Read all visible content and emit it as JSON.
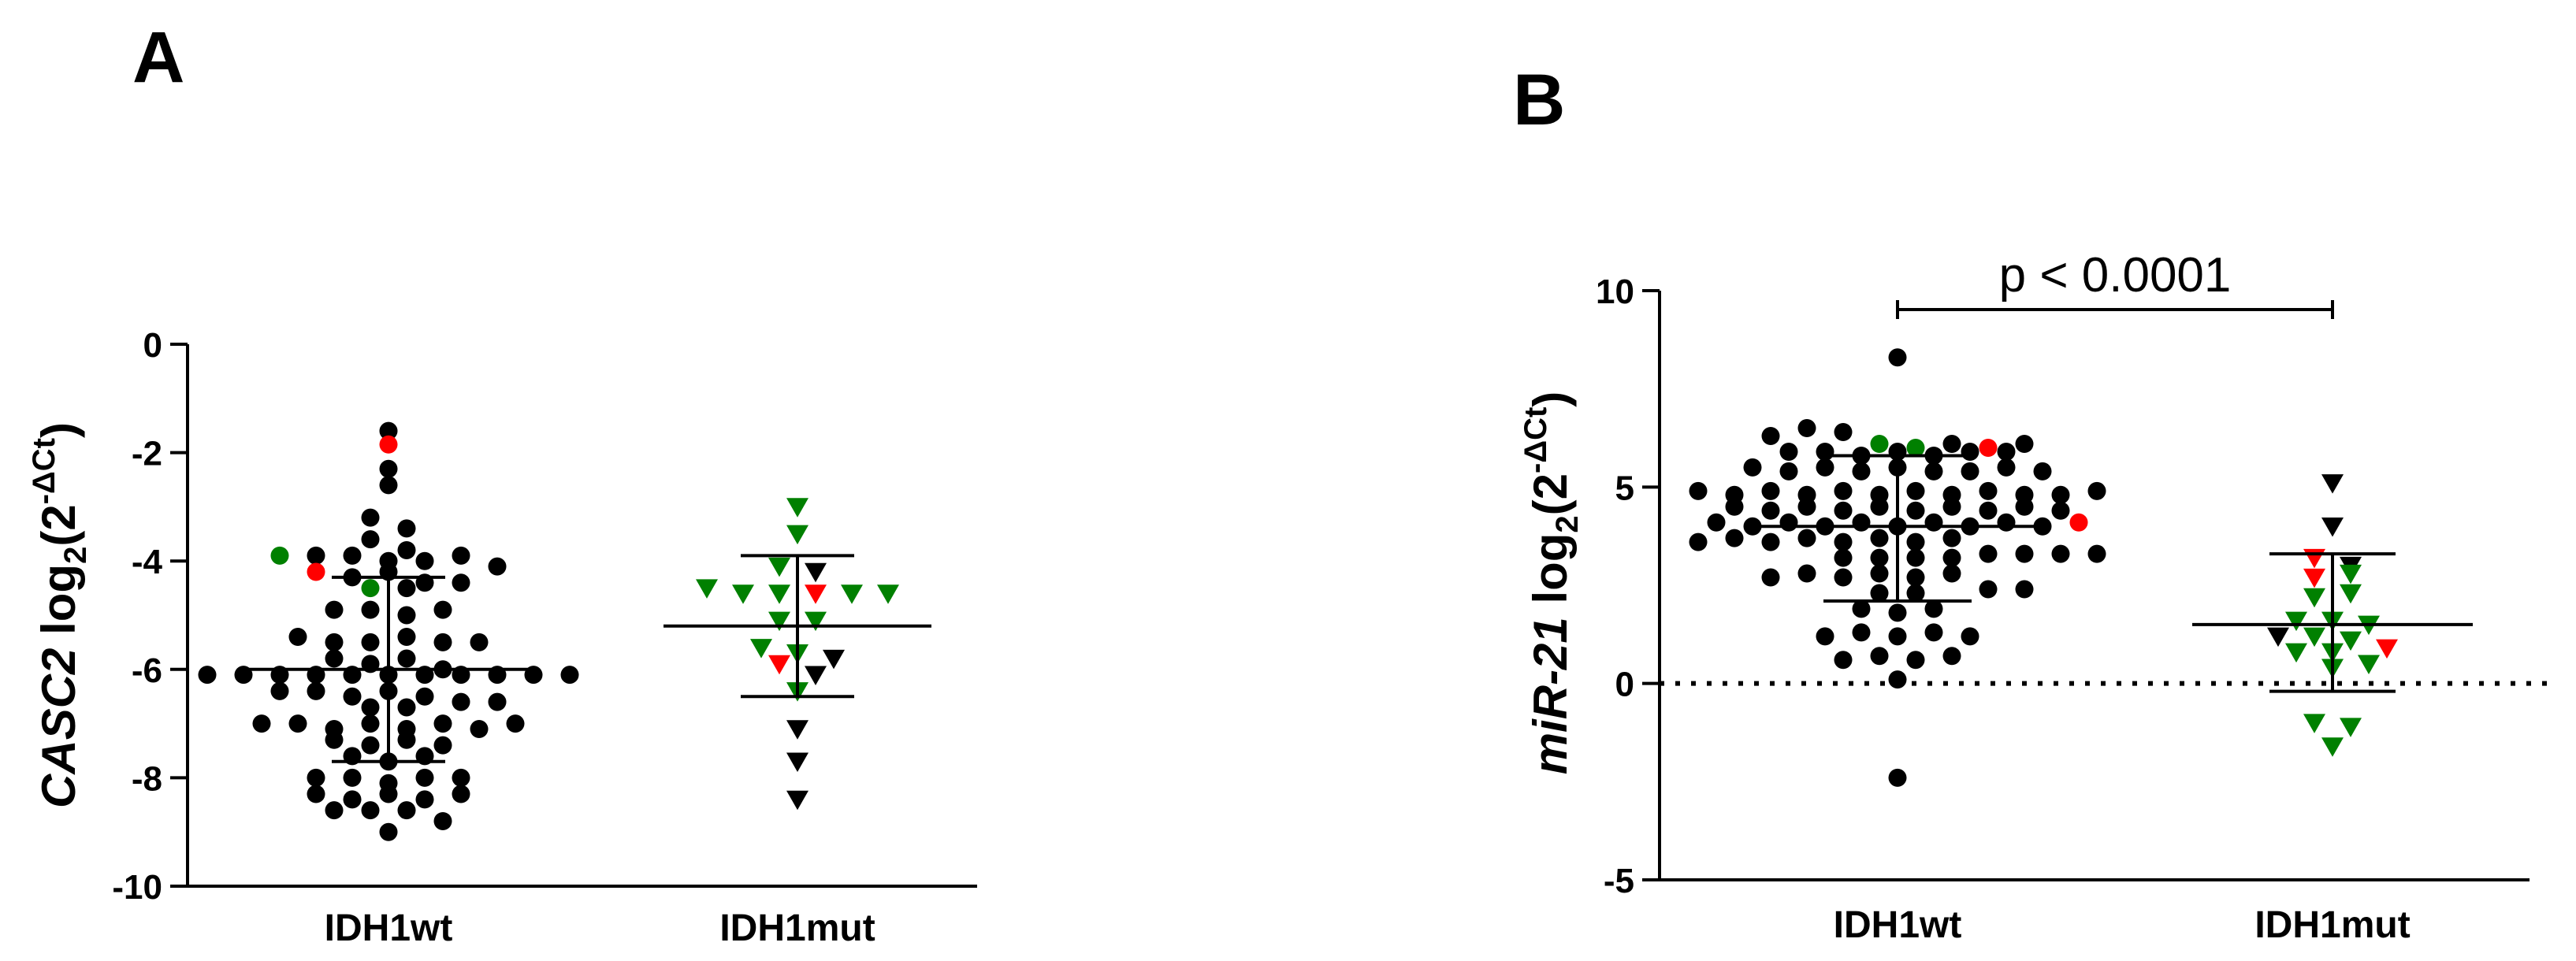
{
  "panels": [
    {
      "letter": "A",
      "ylabel": {
        "gene": "CASC2",
        "log": " log",
        "sub": "2",
        "open": "(2",
        "sup": "-ΔCt",
        "close": ")"
      },
      "ylim": [
        -10,
        0
      ],
      "yticks": [
        0,
        -2,
        -4,
        -6,
        -8,
        -10
      ],
      "yticklabels": [
        "0",
        "-2",
        "-4",
        "-6",
        "-8",
        "-10"
      ],
      "categories": [
        "IDH1wt",
        "IDH1mut"
      ],
      "groups": [
        {
          "name": "IDH1wt",
          "marker": "circle",
          "mean": -6.0,
          "sd_upper": -4.3,
          "sd_lower": -7.7,
          "points": [
            [
              -1.6,
              "#000000"
            ],
            [
              -1.85,
              "#ff0000"
            ],
            [
              -2.3,
              "#000000"
            ],
            [
              -2.6,
              "#000000"
            ],
            [
              -3.2,
              "#000000"
            ],
            [
              -3.4,
              "#000000"
            ],
            [
              -3.6,
              "#000000"
            ],
            [
              -3.8,
              "#000000"
            ],
            [
              -3.9,
              "#008000"
            ],
            [
              -3.9,
              "#000000"
            ],
            [
              -3.9,
              "#000000"
            ],
            [
              -4.0,
              "#000000"
            ],
            [
              -4.0,
              "#000000"
            ],
            [
              -3.9,
              "#000000"
            ],
            [
              -4.1,
              "#000000"
            ],
            [
              -4.2,
              "#ff0000"
            ],
            [
              -4.3,
              "#000000"
            ],
            [
              -4.2,
              "#000000"
            ],
            [
              -4.5,
              "#008000"
            ],
            [
              -4.4,
              "#000000"
            ],
            [
              -4.5,
              "#000000"
            ],
            [
              -4.4,
              "#000000"
            ],
            [
              -4.9,
              "#000000"
            ],
            [
              -4.9,
              "#000000"
            ],
            [
              -5.0,
              "#000000"
            ],
            [
              -4.9,
              "#000000"
            ],
            [
              -5.4,
              "#000000"
            ],
            [
              -5.5,
              "#000000"
            ],
            [
              -5.5,
              "#000000"
            ],
            [
              -5.4,
              "#000000"
            ],
            [
              -5.5,
              "#000000"
            ],
            [
              -5.5,
              "#000000"
            ],
            [
              -5.8,
              "#000000"
            ],
            [
              -5.9,
              "#000000"
            ],
            [
              -5.8,
              "#000000"
            ],
            [
              -6.1,
              "#000000"
            ],
            [
              -6.1,
              "#000000"
            ],
            [
              -6.1,
              "#000000"
            ],
            [
              -6.1,
              "#000000"
            ],
            [
              -6.1,
              "#000000"
            ],
            [
              -6.1,
              "#000000"
            ],
            [
              -6.1,
              "#000000"
            ],
            [
              -6.1,
              "#000000"
            ],
            [
              -6.1,
              "#000000"
            ],
            [
              -6.1,
              "#000000"
            ],
            [
              -6.0,
              "#000000"
            ],
            [
              -6.1,
              "#000000"
            ],
            [
              -6.4,
              "#000000"
            ],
            [
              -6.4,
              "#000000"
            ],
            [
              -6.5,
              "#000000"
            ],
            [
              -6.4,
              "#000000"
            ],
            [
              -6.5,
              "#000000"
            ],
            [
              -6.6,
              "#000000"
            ],
            [
              -6.7,
              "#000000"
            ],
            [
              -6.7,
              "#000000"
            ],
            [
              -6.6,
              "#000000"
            ],
            [
              -7.0,
              "#000000"
            ],
            [
              -7.0,
              "#000000"
            ],
            [
              -7.1,
              "#000000"
            ],
            [
              -7.0,
              "#000000"
            ],
            [
              -7.1,
              "#000000"
            ],
            [
              -7.0,
              "#000000"
            ],
            [
              -7.1,
              "#000000"
            ],
            [
              -7.0,
              "#000000"
            ],
            [
              -7.3,
              "#000000"
            ],
            [
              -7.4,
              "#000000"
            ],
            [
              -7.3,
              "#000000"
            ],
            [
              -7.4,
              "#000000"
            ],
            [
              -7.6,
              "#000000"
            ],
            [
              -7.7,
              "#000000"
            ],
            [
              -7.6,
              "#000000"
            ],
            [
              -8.0,
              "#000000"
            ],
            [
              -8.0,
              "#000000"
            ],
            [
              -8.1,
              "#000000"
            ],
            [
              -8.0,
              "#000000"
            ],
            [
              -8.0,
              "#000000"
            ],
            [
              -8.3,
              "#000000"
            ],
            [
              -8.4,
              "#000000"
            ],
            [
              -8.3,
              "#000000"
            ],
            [
              -8.4,
              "#000000"
            ],
            [
              -8.3,
              "#000000"
            ],
            [
              -8.6,
              "#000000"
            ],
            [
              -8.6,
              "#000000"
            ],
            [
              -8.6,
              "#000000"
            ],
            [
              -8.8,
              "#000000"
            ],
            [
              -9.0,
              "#000000"
            ]
          ]
        },
        {
          "name": "IDH1mut",
          "marker": "triangle-down",
          "mean": -5.2,
          "sd_upper": -3.9,
          "sd_lower": -6.5,
          "points": [
            [
              -3.0,
              "#008000"
            ],
            [
              -3.5,
              "#008000"
            ],
            [
              -4.1,
              "#008000"
            ],
            [
              -4.2,
              "#000000"
            ],
            [
              -4.5,
              "#008000"
            ],
            [
              -4.6,
              "#008000"
            ],
            [
              -4.6,
              "#008000"
            ],
            [
              -4.6,
              "#ff0000"
            ],
            [
              -4.6,
              "#008000"
            ],
            [
              -4.6,
              "#008000"
            ],
            [
              -5.1,
              "#008000"
            ],
            [
              -5.1,
              "#008000"
            ],
            [
              -5.6,
              "#008000"
            ],
            [
              -5.7,
              "#008000"
            ],
            [
              -5.8,
              "#000000"
            ],
            [
              -5.9,
              "#ff0000"
            ],
            [
              -6.1,
              "#000000"
            ],
            [
              -6.4,
              "#008000"
            ],
            [
              -7.1,
              "#000000"
            ],
            [
              -7.7,
              "#000000"
            ],
            [
              -8.4,
              "#000000"
            ]
          ]
        }
      ]
    },
    {
      "letter": "B",
      "ylabel": {
        "gene": "miR-21",
        "log": " log",
        "sub": "2",
        "open": "(2",
        "sup": "-ΔCt",
        "close": ")"
      },
      "ylim": [
        -5,
        10
      ],
      "yticks": [
        10,
        5,
        0,
        -5
      ],
      "yticklabels": [
        "10",
        "5",
        "0",
        "-5"
      ],
      "categories": [
        "IDH1wt",
        "IDH1mut"
      ],
      "pvalue": "p < 0.0001",
      "groups": [
        {
          "name": "IDH1wt",
          "marker": "circle",
          "mean": 4.0,
          "sd_upper": 5.8,
          "sd_lower": 2.1,
          "points": [
            [
              8.3,
              "#000000"
            ],
            [
              6.3,
              "#000000"
            ],
            [
              6.5,
              "#000000"
            ],
            [
              6.4,
              "#000000"
            ],
            [
              6.1,
              "#008000"
            ],
            [
              6.0,
              "#008000"
            ],
            [
              6.1,
              "#000000"
            ],
            [
              6.0,
              "#ff0000"
            ],
            [
              6.1,
              "#000000"
            ],
            [
              5.9,
              "#000000"
            ],
            [
              5.9,
              "#000000"
            ],
            [
              5.8,
              "#000000"
            ],
            [
              5.9,
              "#000000"
            ],
            [
              5.8,
              "#000000"
            ],
            [
              5.9,
              "#000000"
            ],
            [
              5.9,
              "#000000"
            ],
            [
              5.5,
              "#000000"
            ],
            [
              5.4,
              "#000000"
            ],
            [
              5.5,
              "#000000"
            ],
            [
              5.4,
              "#000000"
            ],
            [
              5.5,
              "#000000"
            ],
            [
              5.4,
              "#000000"
            ],
            [
              5.4,
              "#000000"
            ],
            [
              5.5,
              "#000000"
            ],
            [
              5.4,
              "#000000"
            ],
            [
              4.9,
              "#000000"
            ],
            [
              4.8,
              "#000000"
            ],
            [
              4.9,
              "#000000"
            ],
            [
              4.8,
              "#000000"
            ],
            [
              4.9,
              "#000000"
            ],
            [
              4.8,
              "#000000"
            ],
            [
              4.9,
              "#000000"
            ],
            [
              4.8,
              "#000000"
            ],
            [
              4.9,
              "#000000"
            ],
            [
              4.8,
              "#000000"
            ],
            [
              4.8,
              "#000000"
            ],
            [
              4.9,
              "#000000"
            ],
            [
              4.5,
              "#000000"
            ],
            [
              4.4,
              "#000000"
            ],
            [
              4.5,
              "#000000"
            ],
            [
              4.4,
              "#000000"
            ],
            [
              4.5,
              "#000000"
            ],
            [
              4.4,
              "#000000"
            ],
            [
              4.5,
              "#000000"
            ],
            [
              4.4,
              "#000000"
            ],
            [
              4.5,
              "#000000"
            ],
            [
              4.4,
              "#000000"
            ],
            [
              4.1,
              "#000000"
            ],
            [
              4.0,
              "#000000"
            ],
            [
              4.1,
              "#000000"
            ],
            [
              4.0,
              "#000000"
            ],
            [
              4.1,
              "#000000"
            ],
            [
              4.0,
              "#000000"
            ],
            [
              4.1,
              "#000000"
            ],
            [
              4.0,
              "#000000"
            ],
            [
              4.1,
              "#000000"
            ],
            [
              4.0,
              "#000000"
            ],
            [
              4.1,
              "#ff0000"
            ],
            [
              3.6,
              "#000000"
            ],
            [
              3.7,
              "#000000"
            ],
            [
              3.6,
              "#000000"
            ],
            [
              3.7,
              "#000000"
            ],
            [
              3.6,
              "#000000"
            ],
            [
              3.7,
              "#000000"
            ],
            [
              3.6,
              "#000000"
            ],
            [
              3.7,
              "#000000"
            ],
            [
              3.2,
              "#000000"
            ],
            [
              3.3,
              "#000000"
            ],
            [
              3.2,
              "#000000"
            ],
            [
              3.3,
              "#000000"
            ],
            [
              3.2,
              "#000000"
            ],
            [
              3.3,
              "#000000"
            ],
            [
              3.2,
              "#000000"
            ],
            [
              3.3,
              "#000000"
            ],
            [
              2.7,
              "#000000"
            ],
            [
              2.8,
              "#000000"
            ],
            [
              2.7,
              "#000000"
            ],
            [
              2.8,
              "#000000"
            ],
            [
              2.7,
              "#000000"
            ],
            [
              2.8,
              "#000000"
            ],
            [
              2.3,
              "#000000"
            ],
            [
              2.4,
              "#000000"
            ],
            [
              2.3,
              "#000000"
            ],
            [
              2.4,
              "#000000"
            ],
            [
              1.9,
              "#000000"
            ],
            [
              1.8,
              "#000000"
            ],
            [
              1.9,
              "#000000"
            ],
            [
              1.2,
              "#000000"
            ],
            [
              1.3,
              "#000000"
            ],
            [
              1.2,
              "#000000"
            ],
            [
              1.3,
              "#000000"
            ],
            [
              1.2,
              "#000000"
            ],
            [
              0.6,
              "#000000"
            ],
            [
              0.7,
              "#000000"
            ],
            [
              0.6,
              "#000000"
            ],
            [
              0.7,
              "#000000"
            ],
            [
              0.1,
              "#000000"
            ],
            [
              -2.4,
              "#000000"
            ]
          ]
        },
        {
          "name": "IDH1mut",
          "marker": "triangle-down",
          "mean": 1.5,
          "sd_upper": 3.3,
          "sd_lower": -0.2,
          "points": [
            [
              5.1,
              "#000000"
            ],
            [
              4.0,
              "#000000"
            ],
            [
              3.2,
              "#ff0000"
            ],
            [
              3.0,
              "#000000"
            ],
            [
              2.7,
              "#ff0000"
            ],
            [
              2.8,
              "#008000"
            ],
            [
              2.2,
              "#008000"
            ],
            [
              2.3,
              "#008000"
            ],
            [
              1.6,
              "#008000"
            ],
            [
              1.6,
              "#008000"
            ],
            [
              1.5,
              "#008000"
            ],
            [
              1.2,
              "#000000"
            ],
            [
              1.2,
              "#008000"
            ],
            [
              1.1,
              "#008000"
            ],
            [
              0.9,
              "#ff0000"
            ],
            [
              0.8,
              "#008000"
            ],
            [
              0.8,
              "#008000"
            ],
            [
              0.5,
              "#008000"
            ],
            [
              0.4,
              "#008000"
            ],
            [
              -1.0,
              "#008000"
            ],
            [
              -1.1,
              "#008000"
            ],
            [
              -1.6,
              "#008000"
            ]
          ]
        }
      ]
    }
  ],
  "chart_data": [
    {
      "type": "scatter",
      "title": "",
      "xlabel": "",
      "ylabel": "CASC2 log2(2-ΔCt)",
      "categories": [
        "IDH1wt",
        "IDH1mut"
      ],
      "ylim": [
        -10,
        0
      ],
      "series": [
        {
          "name": "IDH1wt",
          "mean": -6.0,
          "sd_upper": -4.3,
          "sd_lower": -7.7
        },
        {
          "name": "IDH1mut",
          "mean": -5.2,
          "sd_upper": -3.9,
          "sd_lower": -6.5
        }
      ],
      "grid": false
    },
    {
      "type": "scatter",
      "title": "",
      "xlabel": "",
      "ylabel": "miR-21 log2(2-ΔCt)",
      "categories": [
        "IDH1wt",
        "IDH1mut"
      ],
      "ylim": [
        -5,
        10
      ],
      "series": [
        {
          "name": "IDH1wt",
          "mean": 4.0,
          "sd_upper": 5.8,
          "sd_lower": 2.1
        },
        {
          "name": "IDH1mut",
          "mean": 1.5,
          "sd_upper": 3.3,
          "sd_lower": -0.2
        }
      ],
      "annotations": [
        "p < 0.0001"
      ],
      "reference_line_y": 0,
      "grid": false
    }
  ]
}
